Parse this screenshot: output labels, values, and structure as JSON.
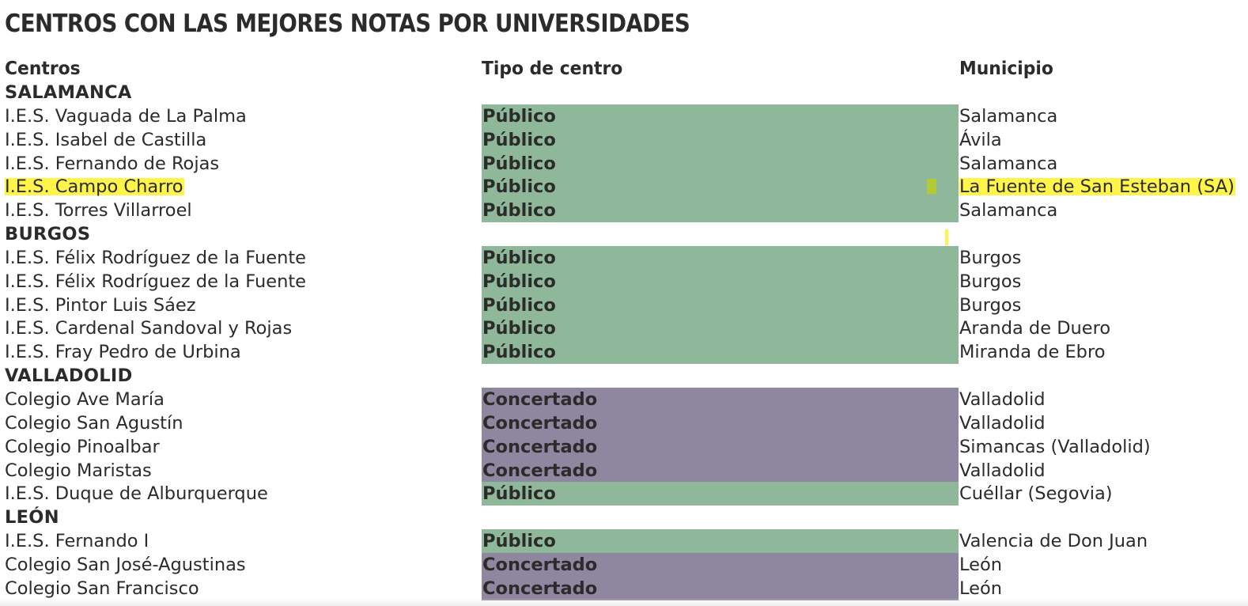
{
  "title": "CENTROS CON LAS MEJORES NOTAS POR UNIVERSIDADES",
  "headers": {
    "centros": "Centros",
    "tipo": "Tipo de centro",
    "municipio": "Municipio"
  },
  "colors": {
    "publico": "#8fb89a",
    "concertado": "#8f879f",
    "highlight": "#fff23a"
  },
  "rows": [
    {
      "kind": "group",
      "name": "SALAMANCA"
    },
    {
      "kind": "item",
      "name": "I.E.S. Vaguada de La Palma",
      "tipo": "Público",
      "municipio": "Salamanca"
    },
    {
      "kind": "item",
      "name": "I.E.S. Isabel de Castilla",
      "tipo": "Público",
      "municipio": "Ávila"
    },
    {
      "kind": "item",
      "name": "I.E.S. Fernando de Rojas",
      "tipo": "Público",
      "municipio": "Salamanca"
    },
    {
      "kind": "item",
      "name": "I.E.S. Campo Charro",
      "tipo": "Público",
      "municipio": "La Fuente de San Esteban (SA)",
      "highlighted": true
    },
    {
      "kind": "item",
      "name": "I.E.S. Torres Villarroel",
      "tipo": "Público",
      "municipio": "Salamanca"
    },
    {
      "kind": "group",
      "name": "BURGOS"
    },
    {
      "kind": "item",
      "name": "I.E.S. Félix Rodríguez de la Fuente",
      "tipo": "Público",
      "municipio": "Burgos"
    },
    {
      "kind": "item",
      "name": "I.E.S. Félix Rodríguez de la Fuente",
      "tipo": "Público",
      "municipio": "Burgos"
    },
    {
      "kind": "item",
      "name": "I.E.S. Pintor Luis Sáez",
      "tipo": "Público",
      "municipio": "Burgos"
    },
    {
      "kind": "item",
      "name": "I.E.S. Cardenal Sandoval y Rojas",
      "tipo": "Público",
      "municipio": "Aranda de Duero"
    },
    {
      "kind": "item",
      "name": "I.E.S. Fray Pedro de Urbina",
      "tipo": "Público",
      "municipio": "Miranda de Ebro"
    },
    {
      "kind": "group",
      "name": "VALLADOLID"
    },
    {
      "kind": "item",
      "name": "Colegio Ave María",
      "tipo": "Concertado",
      "municipio": "Valladolid"
    },
    {
      "kind": "item",
      "name": "Colegio San Agustín",
      "tipo": "Concertado",
      "municipio": "Valladolid"
    },
    {
      "kind": "item",
      "name": "Colegio Pinoalbar",
      "tipo": "Concertado",
      "municipio": "Simancas (Valladolid)"
    },
    {
      "kind": "item",
      "name": "Colegio Maristas",
      "tipo": "Concertado",
      "municipio": "Valladolid"
    },
    {
      "kind": "item",
      "name": "I.E.S. Duque de Alburquerque",
      "tipo": "Público",
      "municipio": "Cuéllar (Segovia)"
    },
    {
      "kind": "group",
      "name": "LEÓN"
    },
    {
      "kind": "item",
      "name": "I.E.S. Fernando I",
      "tipo": "Público",
      "municipio": "Valencia de Don Juan"
    },
    {
      "kind": "item",
      "name": "Colegio San José-Agustinas",
      "tipo": "Concertado",
      "municipio": "León"
    },
    {
      "kind": "item",
      "name": "Colegio San Francisco",
      "tipo": "Concertado",
      "municipio": "León"
    }
  ]
}
